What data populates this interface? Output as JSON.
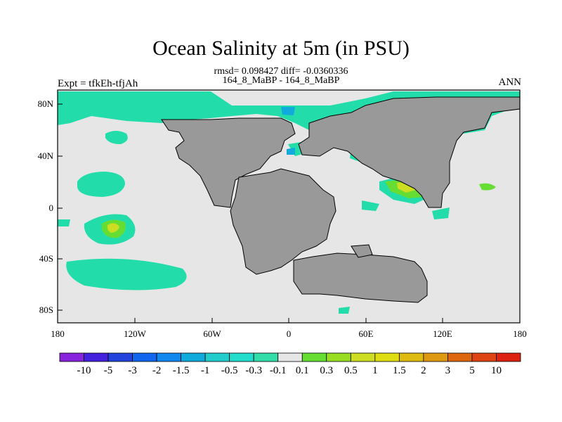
{
  "title": "Ocean Salinity at 5m (in PSU)",
  "stats": "rmsd= 0.098427 diff= -0.0360336",
  "case_label": "164_8_MaBP - 164_8_MaBP",
  "experiment_label": "Expt = tfkEh-tfjAh",
  "season_label": "ANN",
  "colors": {
    "ocean_background": "#e6e6e6",
    "land": "#999999",
    "positive_small": "#66dd33",
    "negative_small": "#22ddaa"
  },
  "chart_data": {
    "type": "heatmap",
    "projection": "cylindrical-equidistant",
    "x_range": [
      -180,
      180
    ],
    "y_range": [
      -90,
      90
    ],
    "x_ticks": [
      "180",
      "120W",
      "60W",
      "0",
      "60E",
      "120E",
      "180"
    ],
    "y_ticks": [
      "80N",
      "40N",
      "0",
      "40S",
      "80S"
    ],
    "colorbar": {
      "labels": [
        "-10",
        "-5",
        "-3",
        "-2",
        "-1.5",
        "-1",
        "-0.5",
        "-0.3",
        "-0.1",
        "0.1",
        "0.3",
        "0.5",
        "1",
        "1.5",
        "2",
        "3",
        "5",
        "10"
      ],
      "colors": [
        "#8822dd",
        "#4422dd",
        "#2244dd",
        "#1166ee",
        "#1188ee",
        "#11aadd",
        "#22cccc",
        "#22ddcc",
        "#33ddaa",
        "#e6e6e6",
        "#66dd33",
        "#99dd22",
        "#ccdd22",
        "#dddd11",
        "#ddbb11",
        "#dd9911",
        "#dd6611",
        "#dd4411",
        "#dd2211"
      ]
    }
  }
}
